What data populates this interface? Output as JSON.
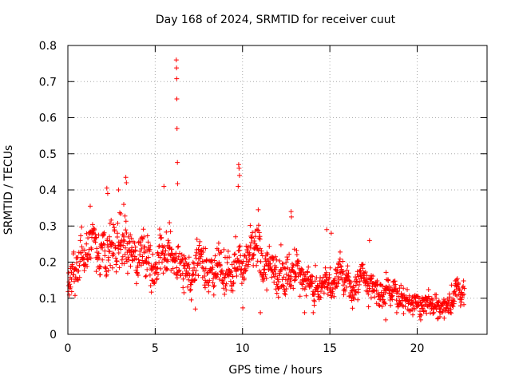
{
  "chart_data": {
    "type": "scatter",
    "title": "Day 168 of 2024, SRMTID for receiver cuut",
    "xlabel": "GPS time / hours",
    "ylabel": "SRMTID / TECUs",
    "xlim": [
      0,
      24
    ],
    "ylim": [
      0,
      0.8
    ],
    "xticks": [
      0,
      5,
      10,
      15,
      20
    ],
    "yticks": [
      0,
      0.1,
      0.2,
      0.3,
      0.4,
      0.5,
      0.6,
      0.7,
      0.8
    ],
    "grid": true,
    "marker": "+",
    "series": [
      {
        "name": "cuut",
        "color": "#ff0000",
        "x_range": [
          0.0,
          22.7
        ],
        "profile": [
          [
            0.0,
            0.16,
            0.035
          ],
          [
            0.5,
            0.19,
            0.04
          ],
          [
            1.0,
            0.23,
            0.04
          ],
          [
            1.5,
            0.24,
            0.045
          ],
          [
            2.0,
            0.23,
            0.05
          ],
          [
            2.5,
            0.25,
            0.05
          ],
          [
            3.0,
            0.25,
            0.055
          ],
          [
            3.5,
            0.22,
            0.05
          ],
          [
            4.0,
            0.22,
            0.045
          ],
          [
            4.5,
            0.22,
            0.045
          ],
          [
            5.0,
            0.21,
            0.045
          ],
          [
            5.5,
            0.22,
            0.045
          ],
          [
            6.0,
            0.2,
            0.04
          ],
          [
            6.5,
            0.2,
            0.04
          ],
          [
            7.0,
            0.18,
            0.04
          ],
          [
            7.5,
            0.17,
            0.04
          ],
          [
            8.0,
            0.18,
            0.04
          ],
          [
            8.5,
            0.18,
            0.04
          ],
          [
            9.0,
            0.19,
            0.04
          ],
          [
            9.5,
            0.21,
            0.045
          ],
          [
            10.0,
            0.2,
            0.045
          ],
          [
            10.5,
            0.2,
            0.045
          ],
          [
            11.0,
            0.22,
            0.05
          ],
          [
            11.5,
            0.19,
            0.04
          ],
          [
            12.0,
            0.17,
            0.04
          ],
          [
            12.5,
            0.18,
            0.04
          ],
          [
            13.0,
            0.18,
            0.04
          ],
          [
            13.5,
            0.15,
            0.035
          ],
          [
            14.0,
            0.12,
            0.03
          ],
          [
            14.5,
            0.14,
            0.03
          ],
          [
            15.0,
            0.16,
            0.035
          ],
          [
            15.5,
            0.15,
            0.035
          ],
          [
            16.0,
            0.14,
            0.03
          ],
          [
            16.5,
            0.15,
            0.03
          ],
          [
            17.0,
            0.16,
            0.03
          ],
          [
            17.5,
            0.14,
            0.03
          ],
          [
            18.0,
            0.11,
            0.025
          ],
          [
            18.5,
            0.12,
            0.025
          ],
          [
            19.0,
            0.11,
            0.025
          ],
          [
            19.5,
            0.09,
            0.02
          ],
          [
            20.0,
            0.08,
            0.02
          ],
          [
            20.5,
            0.09,
            0.02
          ],
          [
            21.0,
            0.08,
            0.02
          ],
          [
            21.5,
            0.08,
            0.02
          ],
          [
            22.0,
            0.1,
            0.025
          ],
          [
            22.7,
            0.13,
            0.025
          ]
        ],
        "spikes": [
          [
            6.21,
            0.76
          ],
          [
            6.22,
            0.738
          ],
          [
            6.23,
            0.708
          ],
          [
            6.24,
            0.652
          ],
          [
            6.25,
            0.57
          ],
          [
            6.27,
            0.476
          ],
          [
            6.28,
            0.417
          ],
          [
            9.78,
            0.47
          ],
          [
            9.8,
            0.46
          ],
          [
            9.83,
            0.44
          ],
          [
            9.75,
            0.41
          ],
          [
            3.32,
            0.435
          ],
          [
            3.35,
            0.42
          ],
          [
            2.23,
            0.405
          ],
          [
            2.28,
            0.39
          ],
          [
            5.5,
            0.41
          ],
          [
            12.78,
            0.34
          ],
          [
            12.8,
            0.325
          ],
          [
            10.9,
            0.345
          ],
          [
            14.82,
            0.29
          ],
          [
            15.08,
            0.28
          ],
          [
            17.27,
            0.26
          ],
          [
            1.28,
            0.355
          ],
          [
            2.9,
            0.4
          ],
          [
            3.2,
            0.36
          ],
          [
            13.55,
            0.06
          ],
          [
            14.05,
            0.06
          ],
          [
            18.2,
            0.04
          ],
          [
            20.2,
            0.04
          ],
          [
            21.2,
            0.045
          ],
          [
            11.02,
            0.06
          ],
          [
            7.3,
            0.07
          ]
        ]
      }
    ]
  }
}
